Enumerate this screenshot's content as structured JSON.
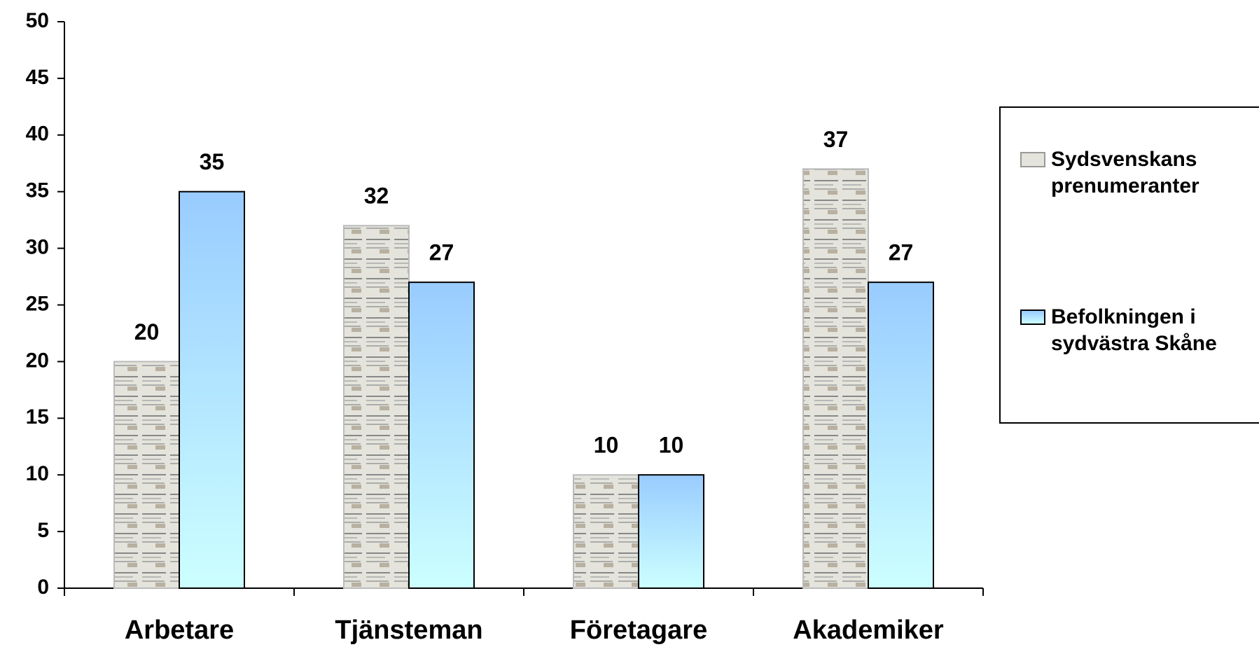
{
  "chart_data": {
    "type": "bar",
    "categories": [
      "Arbetare",
      "Tjänsteman",
      "Företagare",
      "Akademiker"
    ],
    "series": [
      {
        "name": "Sydsvenskans prenumeranter",
        "color": "#e4e4dc",
        "values": [
          20,
          32,
          10,
          37
        ]
      },
      {
        "name": "Befolkningen i sydvästra Skåne",
        "color": "#99ccff",
        "values": [
          35,
          27,
          10,
          27
        ]
      }
    ],
    "ylim": [
      0,
      50
    ],
    "yticks": [
      0,
      5,
      10,
      15,
      20,
      25,
      30,
      35,
      40,
      45,
      50
    ],
    "legend": "right"
  }
}
